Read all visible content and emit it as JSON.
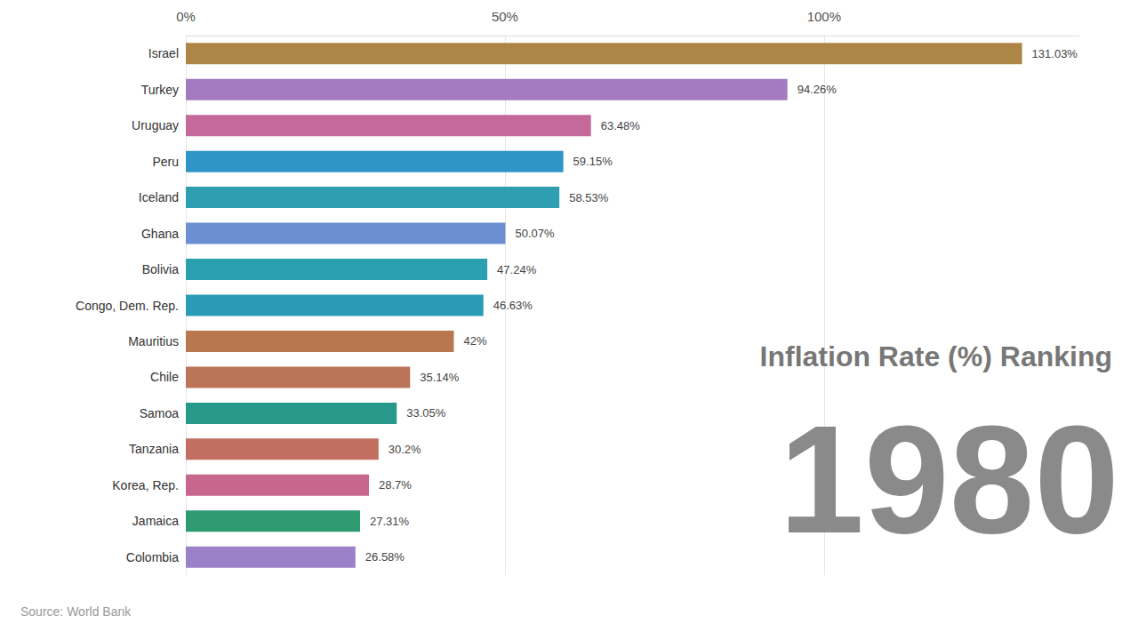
{
  "chart_data": {
    "type": "bar",
    "orientation": "horizontal",
    "title": "Inflation Rate (%) Ranking",
    "subtitle": "1980",
    "source": "Source: World Bank",
    "categories": [
      "Israel",
      "Turkey",
      "Uruguay",
      "Peru",
      "Iceland",
      "Ghana",
      "Bolivia",
      "Congo, Dem. Rep.",
      "Mauritius",
      "Chile",
      "Samoa",
      "Tanzania",
      "Korea, Rep.",
      "Jamaica",
      "Colombia"
    ],
    "values": [
      131.03,
      94.26,
      63.48,
      59.15,
      58.53,
      50.07,
      47.24,
      46.63,
      42,
      35.14,
      33.05,
      30.2,
      28.7,
      27.31,
      26.58
    ],
    "value_labels": [
      "131.03%",
      "94.26%",
      "63.48%",
      "59.15%",
      "58.53%",
      "50.07%",
      "47.24%",
      "46.63%",
      "42%",
      "35.14%",
      "33.05%",
      "30.2%",
      "28.7%",
      "27.31%",
      "26.58%"
    ],
    "colors": [
      "#ad8647",
      "#a37bbf",
      "#c4699a",
      "#2e96c7",
      "#2e9eb0",
      "#6b8fd1",
      "#2a9fae",
      "#2a9bb5",
      "#b8774f",
      "#bb7457",
      "#26998a",
      "#c26f62",
      "#c8678e",
      "#2e9a72",
      "#9b82c8"
    ],
    "data_labels": true,
    "xlim": [
      0,
      140
    ],
    "xticks": [
      {
        "value": 0,
        "label": "0%"
      },
      {
        "value": 50,
        "label": "50%"
      },
      {
        "value": 100,
        "label": "100%"
      }
    ],
    "grid": true
  }
}
